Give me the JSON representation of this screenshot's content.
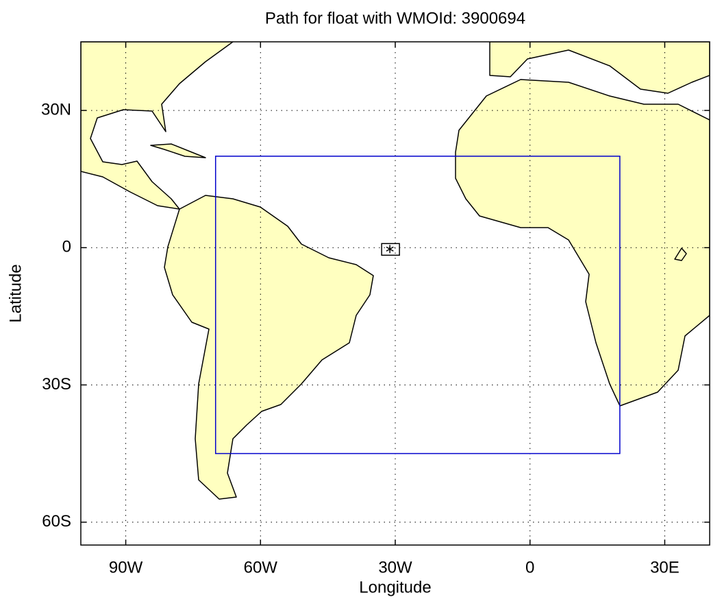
{
  "chart_data": {
    "type": "map",
    "title": "Path for float with WMOId: 3900694",
    "x_label": "Longitude",
    "y_label": "Latitude",
    "xlim": [
      -100,
      40
    ],
    "ylim": [
      -65,
      45
    ],
    "xticks": [
      {
        "value": -90,
        "label": "90W"
      },
      {
        "value": -60,
        "label": "60W"
      },
      {
        "value": -30,
        "label": "30W"
      },
      0,
      {
        "value": 30,
        "label": "30E"
      }
    ],
    "yticks": [
      {
        "value": -60,
        "label": "60S"
      },
      {
        "value": -30,
        "label": "30S"
      },
      0,
      {
        "value": 30,
        "label": "30N"
      }
    ],
    "grid": true,
    "land_color": "#ffffc0",
    "region": {
      "color": "#0000cc",
      "xlim": [
        -70,
        20
      ],
      "ylim": [
        -45,
        20
      ]
    },
    "points": {
      "x": [
        -31.2
      ],
      "y": [
        -0.3
      ]
    }
  }
}
